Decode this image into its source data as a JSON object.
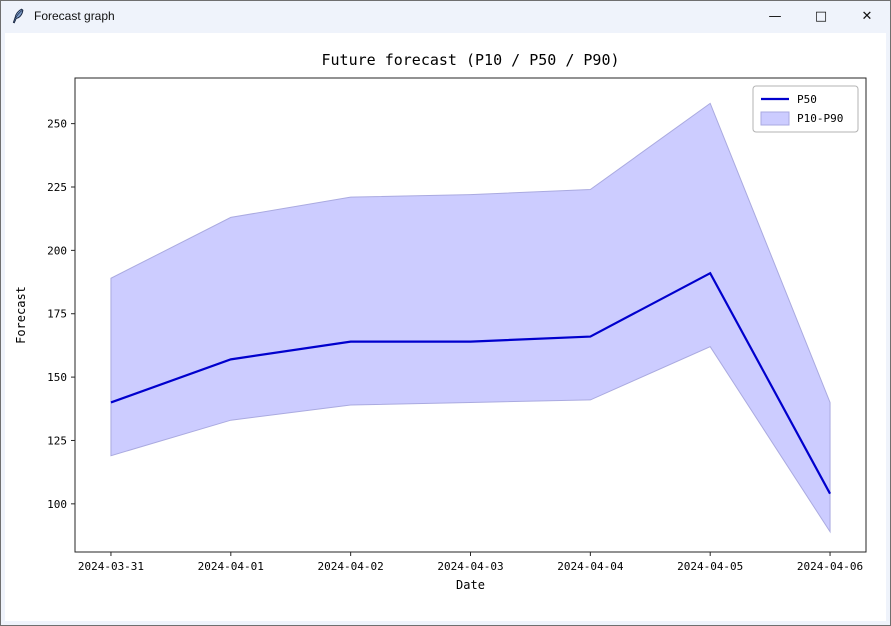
{
  "window": {
    "title": "Forecast graph",
    "controls": [
      {
        "name": "minimize",
        "glyph": "—"
      },
      {
        "name": "maximize",
        "glyph": "□"
      },
      {
        "name": "close",
        "glyph": "✕"
      }
    ]
  },
  "chart_data": {
    "type": "line",
    "title": "Future forecast (P10 / P50 / P90)",
    "xlabel": "Date",
    "ylabel": "Forecast",
    "x": [
      "2024-03-31",
      "2024-04-01",
      "2024-04-02",
      "2024-04-03",
      "2024-04-04",
      "2024-04-05",
      "2024-04-06"
    ],
    "series": [
      {
        "name": "P50",
        "type": "line",
        "color": "#0000cd",
        "values": [
          140,
          157,
          164,
          164,
          166,
          191,
          104
        ]
      },
      {
        "name": "P10-P90",
        "type": "band",
        "fill": "#ccccff",
        "edge": "#aaaae0",
        "lower": [
          119,
          133,
          139,
          140,
          141,
          162,
          89
        ],
        "upper": [
          189,
          213,
          221,
          222,
          224,
          258,
          140
        ]
      }
    ],
    "yticks": [
      100,
      125,
      150,
      175,
      200,
      225,
      250
    ],
    "ylim": [
      81,
      268
    ],
    "grid": false,
    "legend": {
      "position": "upper right",
      "entries": [
        {
          "label": "P50",
          "swatch": "line"
        },
        {
          "label": "P10-P90",
          "swatch": "patch"
        }
      ]
    }
  },
  "colors": {
    "titlebar_bg": "#eff3fb",
    "figure_bg": "#ffffff",
    "axis_frame": "#262626",
    "text": "#000000"
  }
}
